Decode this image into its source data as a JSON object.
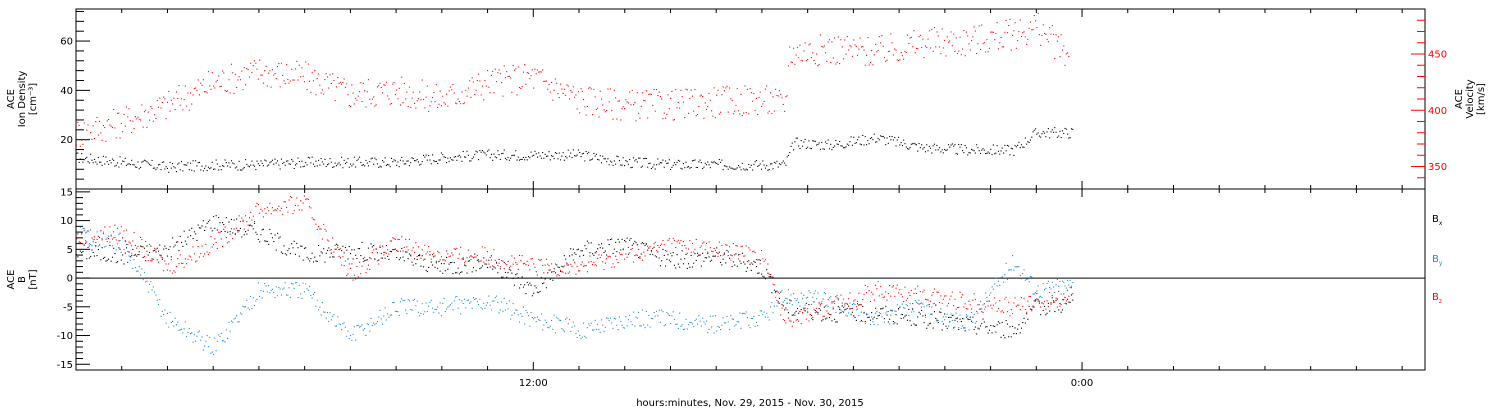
{
  "xlabel": "hours:minutes, Nov. 29, 2015 - Nov. 30, 2015",
  "x_ticks": [
    {
      "hour": 12,
      "label": "12:00"
    },
    {
      "hour": 24,
      "label": "0:00"
    }
  ],
  "x_range_hours": [
    2.0,
    31.5
  ],
  "colors": {
    "black": "#000000",
    "red": "#ff0000",
    "blue": "#1e88e5"
  },
  "chart_data": [
    {
      "type": "scatter",
      "panel": "top",
      "ylabel_left": [
        "ACE",
        "Ion Density",
        "[cm⁻³]"
      ],
      "ylabel_right": [
        "ACE",
        "Velocity",
        "[km/s]"
      ],
      "ylim_left": [
        0,
        73
      ],
      "ylim_right": [
        330,
        490
      ],
      "yticks_left": [
        20,
        40,
        60
      ],
      "yticks_right": [
        350,
        400,
        450
      ],
      "series": [
        {
          "axis": "left",
          "color": "#000000",
          "points": [
            [
              2.0,
              13
            ],
            [
              3.0,
              11
            ],
            [
              4.0,
              9
            ],
            [
              5.0,
              10
            ],
            [
              6.0,
              10
            ],
            [
              7.0,
              11
            ],
            [
              8.0,
              11
            ],
            [
              9.0,
              11
            ],
            [
              10.0,
              13
            ],
            [
              11.0,
              14
            ],
            [
              12.0,
              14
            ],
            [
              13.0,
              14
            ],
            [
              14.0,
              11
            ],
            [
              15.0,
              10
            ],
            [
              16.0,
              10
            ],
            [
              17.0,
              10
            ],
            [
              17.5,
              10
            ],
            [
              17.7,
              19
            ],
            [
              18.5,
              18
            ],
            [
              19.5,
              21
            ],
            [
              20.5,
              17
            ],
            [
              21.5,
              16
            ],
            [
              22.5,
              16
            ],
            [
              23.0,
              23
            ],
            [
              23.8,
              23
            ]
          ]
        },
        {
          "axis": "right",
          "color": "#ff0000",
          "points": [
            [
              2.0,
              380
            ],
            [
              3.0,
              390
            ],
            [
              4.0,
              405
            ],
            [
              5.0,
              425
            ],
            [
              6.0,
              435
            ],
            [
              7.0,
              430
            ],
            [
              8.0,
              415
            ],
            [
              9.0,
              418
            ],
            [
              10.0,
              410
            ],
            [
              11.0,
              425
            ],
            [
              12.0,
              430
            ],
            [
              13.0,
              410
            ],
            [
              14.0,
              405
            ],
            [
              15.0,
              405
            ],
            [
              16.0,
              408
            ],
            [
              17.0,
              410
            ],
            [
              17.5,
              405
            ],
            [
              17.6,
              452
            ],
            [
              18.5,
              455
            ],
            [
              19.5,
              452
            ],
            [
              20.5,
              460
            ],
            [
              21.5,
              462
            ],
            [
              22.5,
              468
            ],
            [
              23.0,
              475
            ],
            [
              23.7,
              448
            ]
          ]
        }
      ]
    },
    {
      "type": "scatter",
      "panel": "bottom",
      "ylabel_left": [
        "ACE",
        "B",
        "[nT]"
      ],
      "ylim": [
        -16,
        15.5
      ],
      "yticks": [
        -15,
        -10,
        -5,
        0,
        5,
        10,
        15
      ],
      "legend": [
        {
          "main": "B",
          "sub": "x",
          "color": "#000000"
        },
        {
          "main": "B",
          "sub": "y",
          "color": "#1e88e5"
        },
        {
          "main": "B",
          "sub": "z",
          "color": "#ff0000"
        }
      ],
      "series": [
        {
          "name": "Bx",
          "color": "#000000",
          "points": [
            [
              2.0,
              5
            ],
            [
              3.0,
              4
            ],
            [
              4.0,
              5
            ],
            [
              5.0,
              10
            ],
            [
              6.0,
              8
            ],
            [
              7.0,
              4
            ],
            [
              8.0,
              5
            ],
            [
              9.0,
              4
            ],
            [
              10.0,
              2
            ],
            [
              11.0,
              3
            ],
            [
              12.0,
              -2
            ],
            [
              13.0,
              5
            ],
            [
              14.0,
              6
            ],
            [
              15.0,
              3
            ],
            [
              16.0,
              4
            ],
            [
              17.0,
              2
            ],
            [
              17.5,
              -5
            ],
            [
              18.5,
              -6
            ],
            [
              19.5,
              -6
            ],
            [
              20.5,
              -7
            ],
            [
              21.5,
              -8
            ],
            [
              22.5,
              -9
            ],
            [
              23.0,
              -5
            ],
            [
              23.8,
              -4
            ]
          ]
        },
        {
          "name": "By",
          "color": "#1e88e5",
          "points": [
            [
              2.0,
              8
            ],
            [
              3.0,
              6
            ],
            [
              4.0,
              -7
            ],
            [
              5.0,
              -12
            ],
            [
              6.0,
              -2
            ],
            [
              7.0,
              -2
            ],
            [
              8.0,
              -10
            ],
            [
              9.0,
              -5
            ],
            [
              10.0,
              -5
            ],
            [
              11.0,
              -4
            ],
            [
              12.0,
              -7
            ],
            [
              13.0,
              -9
            ],
            [
              14.0,
              -7
            ],
            [
              15.0,
              -7
            ],
            [
              16.0,
              -8
            ],
            [
              17.0,
              -7
            ],
            [
              17.5,
              -3
            ],
            [
              18.5,
              -4
            ],
            [
              19.5,
              -7
            ],
            [
              20.5,
              -5
            ],
            [
              21.5,
              -8
            ],
            [
              22.5,
              3
            ],
            [
              23.0,
              -2
            ],
            [
              23.8,
              -1
            ]
          ]
        },
        {
          "name": "Bz",
          "color": "#ff0000",
          "points": [
            [
              2.0,
              7
            ],
            [
              3.0,
              8
            ],
            [
              4.0,
              2
            ],
            [
              5.0,
              6
            ],
            [
              6.0,
              12
            ],
            [
              7.0,
              13
            ],
            [
              8.0,
              1
            ],
            [
              9.0,
              6
            ],
            [
              10.0,
              4
            ],
            [
              11.0,
              4
            ],
            [
              12.0,
              2
            ],
            [
              13.0,
              2
            ],
            [
              14.0,
              4
            ],
            [
              15.0,
              6
            ],
            [
              16.0,
              5
            ],
            [
              17.0,
              4
            ],
            [
              17.5,
              -7
            ],
            [
              18.5,
              -5
            ],
            [
              19.5,
              -2
            ],
            [
              20.5,
              -3
            ],
            [
              21.5,
              -4
            ],
            [
              22.5,
              -5
            ],
            [
              23.0,
              -4
            ],
            [
              23.8,
              -3
            ]
          ]
        }
      ]
    }
  ]
}
